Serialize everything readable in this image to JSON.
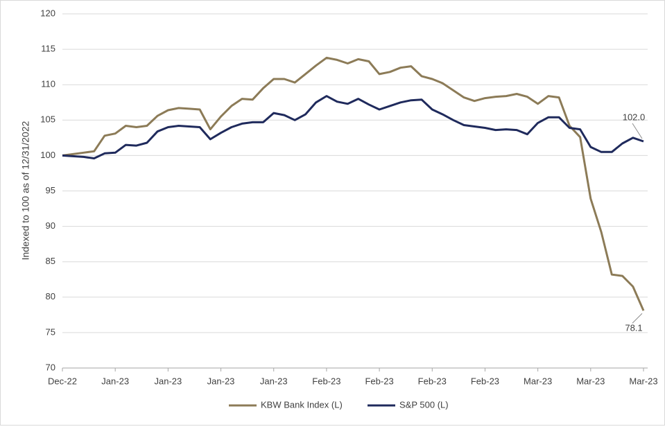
{
  "chart_data": {
    "type": "line",
    "ylabel": "Indexed to 100 as of 12/31/2022",
    "categories": [
      "Dec-22",
      null,
      null,
      null,
      null,
      "Jan-23",
      null,
      null,
      null,
      null,
      "Jan-23",
      null,
      null,
      null,
      null,
      "Jan-23",
      null,
      null,
      null,
      null,
      "Jan-23",
      null,
      null,
      null,
      null,
      "Feb-23",
      null,
      null,
      null,
      null,
      "Feb-23",
      null,
      null,
      null,
      null,
      "Feb-23",
      null,
      null,
      null,
      null,
      "Feb-23",
      null,
      null,
      null,
      null,
      "Mar-23",
      null,
      null,
      null,
      null,
      "Mar-23",
      null,
      null,
      null,
      null,
      "Mar-23"
    ],
    "series": [
      {
        "name": "KBW Bank Index (L)",
        "color": "#8c7b57",
        "end_label": "78.1",
        "values": [
          100,
          100.2,
          100.4,
          100.6,
          102.8,
          103.1,
          104.2,
          104.0,
          104.2,
          105.6,
          106.4,
          106.7,
          106.6,
          106.5,
          103.7,
          105.5,
          107.0,
          108.0,
          107.9,
          109.5,
          110.8,
          110.8,
          110.3,
          111.5,
          112.7,
          113.8,
          113.5,
          113.0,
          113.6,
          113.3,
          111.5,
          111.8,
          112.4,
          112.6,
          111.2,
          110.8,
          110.2,
          109.2,
          108.2,
          107.7,
          108.1,
          108.3,
          108.4,
          108.7,
          108.3,
          107.3,
          108.4,
          108.2,
          104.2,
          102.6,
          93.9,
          89.2,
          83.2,
          83.0,
          81.5,
          78.1
        ]
      },
      {
        "name": "S&P 500 (L)",
        "color": "#1f2a5c",
        "end_label": "102.0",
        "values": [
          100,
          99.9,
          99.8,
          99.6,
          100.3,
          100.4,
          101.5,
          101.4,
          101.8,
          103.4,
          104.0,
          104.2,
          104.1,
          104.0,
          102.3,
          103.2,
          104.0,
          104.5,
          104.7,
          104.7,
          106.0,
          105.7,
          105.0,
          105.8,
          107.5,
          108.4,
          107.6,
          107.3,
          108.0,
          107.2,
          106.5,
          107.0,
          107.5,
          107.8,
          107.9,
          106.5,
          105.8,
          105.0,
          104.3,
          104.1,
          103.9,
          103.6,
          103.7,
          103.6,
          103.0,
          104.6,
          105.4,
          105.4,
          103.9,
          103.7,
          101.2,
          100.5,
          100.5,
          101.7,
          102.5,
          102.0
        ]
      }
    ],
    "ylim": [
      70,
      120
    ],
    "yticks": [
      70,
      75,
      80,
      85,
      90,
      95,
      100,
      105,
      110,
      115,
      120
    ],
    "grid": true,
    "legend": "bottom"
  }
}
